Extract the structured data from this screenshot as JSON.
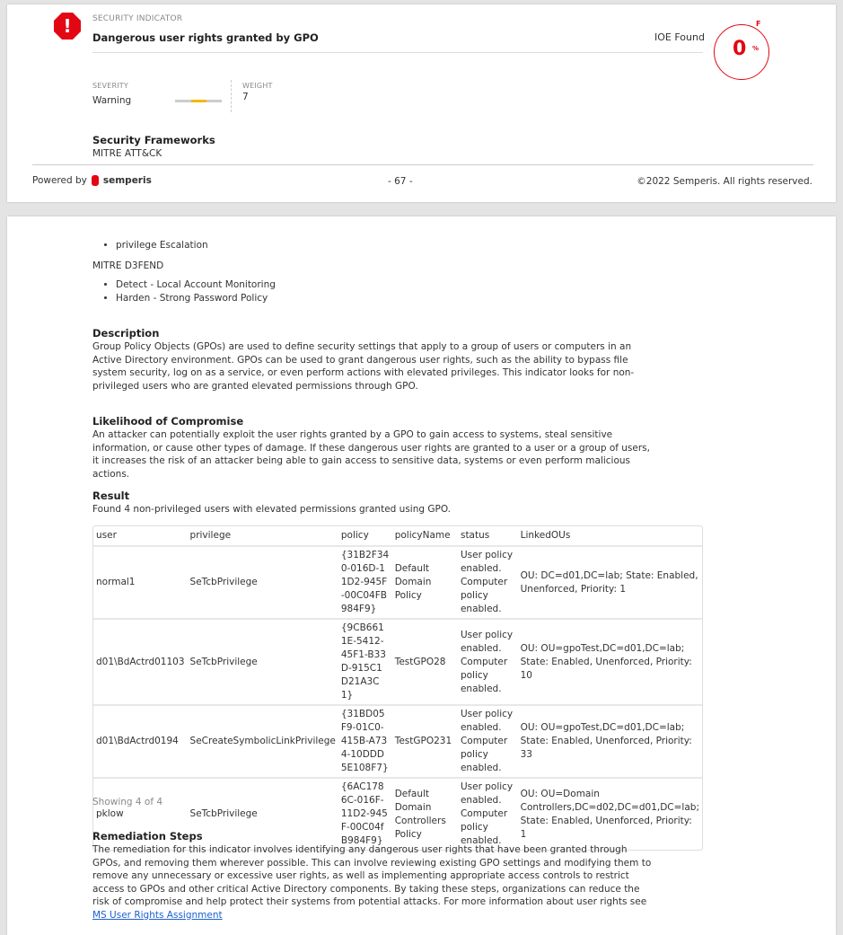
{
  "header": {
    "section_label": "SECURITY INDICATOR",
    "title": "Dangerous user rights granted by GPO",
    "ioe_label": "IOE Found",
    "score": "0",
    "score_unit": "%",
    "grade": "F",
    "severity_label": "SEVERITY",
    "severity": "Warning",
    "severity_level": "2 of 3",
    "weight_label": "WEIGHT",
    "weight": "7",
    "frameworks_title": "Security Frameworks",
    "framework1": "MITRE ATT&CK"
  },
  "footer": {
    "powered_by": "Powered by",
    "brand": "semperis",
    "page": "- 67 -",
    "copyright": "©2022 Semperis. All rights reserved."
  },
  "colors": {
    "accent": "#e30613",
    "severity": "#f5b800"
  },
  "body": {
    "attack_items": [
      "privilege Escalation"
    ],
    "framework2": "MITRE D3FEND",
    "d3fend_items": [
      "Detect - Local Account Monitoring",
      "Harden - Strong Password Policy"
    ],
    "description_title": "Description",
    "description": "Group Policy Objects (GPOs) are used to define security settings that apply to a group of users or computers in an Active Directory environment. GPOs can be used to grant dangerous user rights, such as the ability to bypass file system security, log on as a service, or even perform actions with elevated privileges. This indicator looks for non-privileged users who are granted elevated permissions through GPO.",
    "likelihood_title": "Likelihood of Compromise",
    "likelihood": "An attacker can potentially exploit the user rights granted by a GPO to gain access to systems, steal sensitive information, or cause other types of damage. If these dangerous user rights are granted to a user or a group of users, it increases the risk of an attacker being able to gain access to sensitive data, systems or even perform malicious actions.",
    "result_title": "Result",
    "result": "Found 4 non-privileged users with elevated permissions granted using GPO.",
    "table": {
      "columns": [
        "user",
        "privilege",
        "policy",
        "policyName",
        "status",
        "LinkedOUs"
      ],
      "rows": [
        [
          "normal1",
          "SeTcbPrivilege",
          "{31B2F340-016D-11D2-945F-00C04FB984F9}",
          "Default Domain Policy",
          "User policy enabled. Computer policy enabled.",
          "OU: DC=d01,DC=lab; State: Enabled, Unenforced, Priority: 1"
        ],
        [
          "d01\\BdActrd01103",
          "SeTcbPrivilege",
          "{9CB6611E-5412-45F1-B33D-915C1D21A3C1}",
          "TestGPO28",
          "User policy enabled. Computer policy enabled.",
          "OU: OU=gpoTest,DC=d01,DC=lab; State: Enabled, Unenforced, Priority: 10"
        ],
        [
          "d01\\BdActrd0194",
          "SeCreateSymbolicLinkPrivilege",
          "{31BD05F9-01C0-415B-A734-10DDD5E108F7}",
          "TestGPO231",
          "User policy enabled. Computer policy enabled.",
          "OU: OU=gpoTest,DC=d01,DC=lab; State: Enabled, Unenforced, Priority: 33"
        ],
        [
          "pklow",
          "SeTcbPrivilege",
          "{6AC1786C-016F-11D2-945F-00C04fB984F9}",
          "Default Domain Controllers Policy",
          "User policy enabled. Computer policy enabled.",
          "OU: OU=Domain Controllers,DC=d02,DC=d01,DC=lab; State: Enabled, Unenforced, Priority: 1"
        ]
      ]
    },
    "showing": "Showing 4 of 4",
    "remediation_title": "Remediation Steps",
    "remediation": "The remediation for this indicator involves identifying any dangerous user rights that have been granted through GPOs, and removing them wherever possible. This can involve reviewing existing GPO settings and modifying them to remove any unnecessary or excessive user rights, as well as implementing appropriate access controls to restrict access to GPOs and other critical Active Directory components. By taking these steps, organizations can reduce the risk of compromise and help protect their systems from potential attacks. For more information about user rights see ",
    "remediation_link": "MS User Rights Assignment"
  }
}
